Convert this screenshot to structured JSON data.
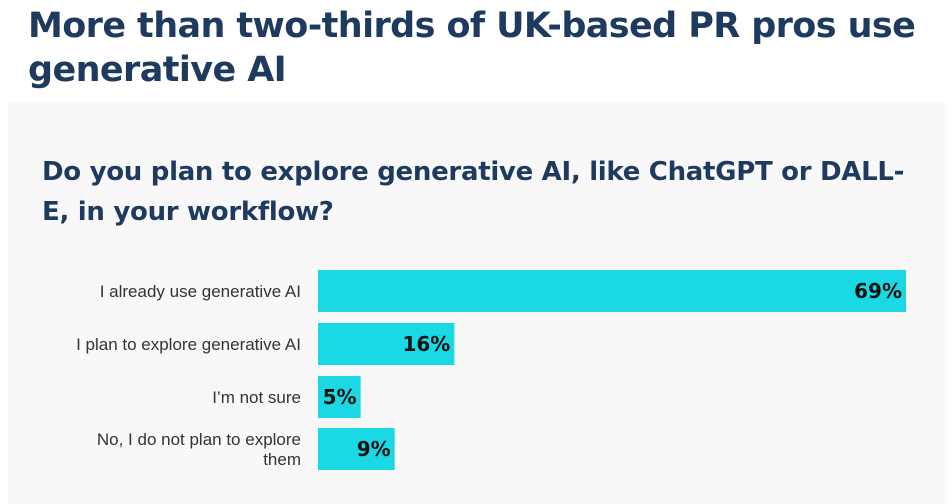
{
  "headline": "More than two-thirds of UK-based PR pros use generative AI",
  "colors": {
    "bar": "#1ad9e4",
    "title": "#1f3a5f",
    "panel": "#f8f8f8"
  },
  "chart_data": {
    "type": "bar",
    "orientation": "horizontal",
    "title": "Do you plan to explore generative AI, like ChatGPT or DALL-E, in your workflow?",
    "categories": [
      "I already use generative AI",
      "I plan to explore generative AI",
      "I’m not sure",
      "No, I do not plan to explore them"
    ],
    "values": [
      69,
      16,
      5,
      9
    ],
    "value_labels": [
      "69%",
      "16%",
      "5%",
      "9%"
    ],
    "xlim": [
      0,
      69
    ],
    "grid": false,
    "legend": "none"
  }
}
